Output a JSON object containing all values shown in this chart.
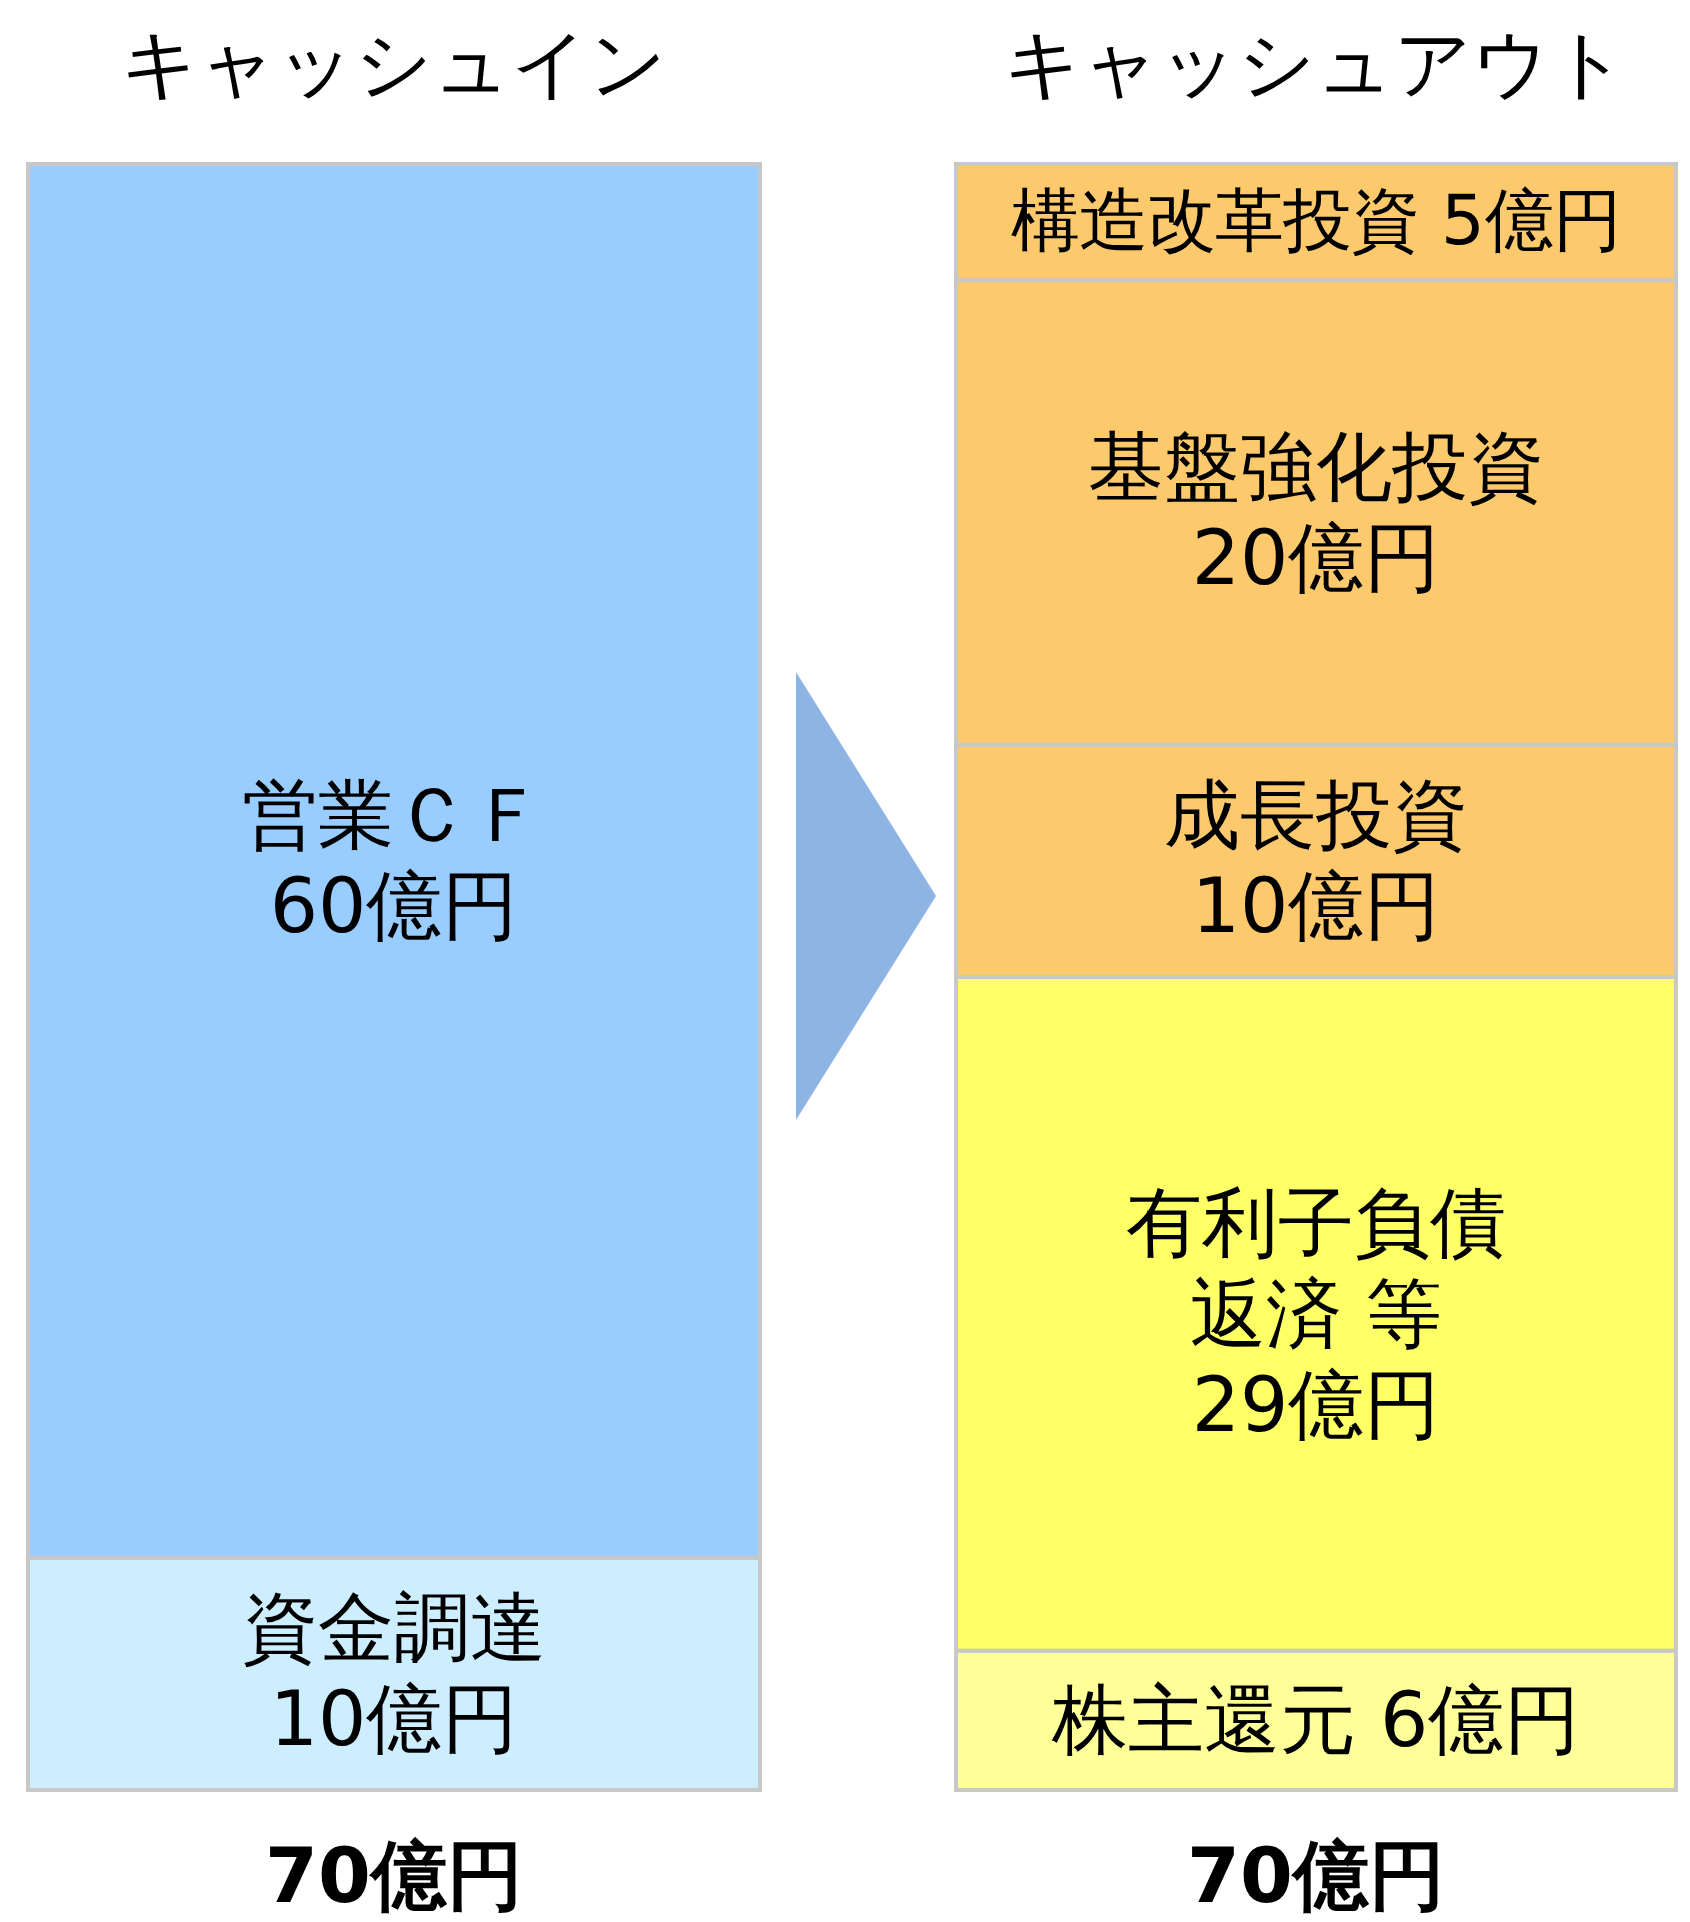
{
  "chart_data": {
    "type": "bar",
    "stacked": true,
    "categories": [
      "キャッシュイン",
      "キャッシュアウト"
    ],
    "series": [
      {
        "name": "資金調達",
        "color": "#cceeff",
        "values": [
          10,
          null
        ],
        "value_labels": [
          "10億円",
          null
        ]
      },
      {
        "name": "営業ＣＦ",
        "color": "#99ccff",
        "values": [
          60,
          null
        ],
        "value_labels": [
          "60億円",
          null
        ]
      },
      {
        "name": "株主還元",
        "color": "#ffff99",
        "values": [
          null,
          6
        ],
        "value_labels": [
          null,
          "6億円"
        ]
      },
      {
        "name": "有利子負債返済 等",
        "color": "#ffff66",
        "values": [
          null,
          29
        ],
        "value_labels": [
          null,
          "29億円"
        ]
      },
      {
        "name": "成長投資",
        "color": "#fcc96c",
        "values": [
          null,
          10
        ],
        "value_labels": [
          null,
          "10億円"
        ]
      },
      {
        "name": "基盤強化投資",
        "color": "#fcc96c",
        "values": [
          null,
          20
        ],
        "value_labels": [
          null,
          "20億円"
        ]
      },
      {
        "name": "構造改革投資",
        "color": "#fcc96c",
        "values": [
          null,
          5
        ],
        "value_labels": [
          null,
          "5億円"
        ]
      }
    ],
    "totals": [
      "70億円",
      "70億円"
    ]
  }
}
